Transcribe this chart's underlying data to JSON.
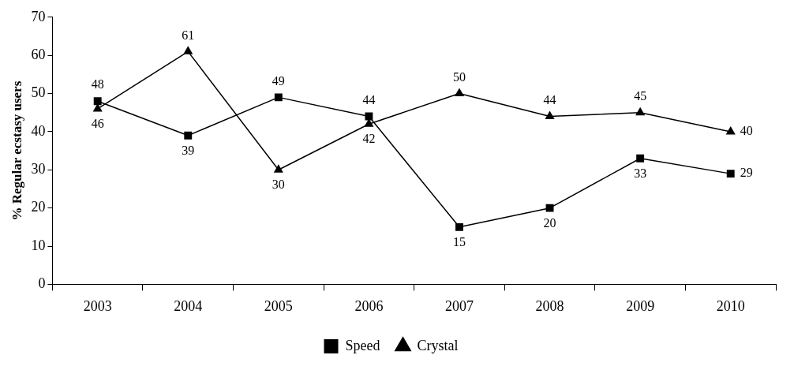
{
  "chart_data": {
    "type": "line",
    "ylabel": "% Regular ecstasy users",
    "categories": [
      "2003",
      "2004",
      "2005",
      "2006",
      "2007",
      "2008",
      "2009",
      "2010"
    ],
    "series": [
      {
        "name": "Speed",
        "color": "#000000",
        "marker": "square",
        "values": [
          48,
          39,
          49,
          44,
          15,
          20,
          33,
          29
        ]
      },
      {
        "name": "Crystal",
        "color": "#000000",
        "marker": "triangle",
        "values": [
          46,
          61,
          30,
          42,
          50,
          44,
          45,
          40
        ]
      }
    ],
    "ylim": [
      0,
      70
    ],
    "yticks": [
      0,
      10,
      20,
      30,
      40,
      50,
      60,
      70
    ],
    "grid": false,
    "legend": "bottom",
    "data_labels": true,
    "line_style": "solid"
  }
}
